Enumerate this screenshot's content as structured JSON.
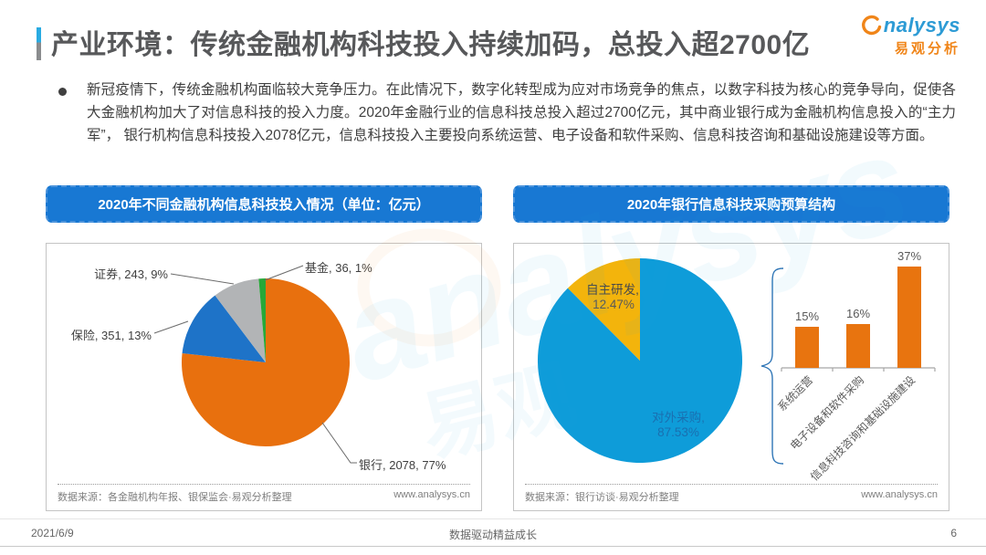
{
  "header": {
    "title": "产业环境：传统金融机构科技投入持续加码，总投入超2700亿",
    "logo": {
      "brand": "analysys",
      "brand_display_rest": "nalysys",
      "brand_cn": "易观分析",
      "brand_color": "#2D9BD5",
      "accent_color": "#F08519"
    }
  },
  "intro": {
    "text": "新冠疫情下，传统金融机构面临较大竞争压力。在此情况下，数字化转型成为应对市场竞争的焦点，以数字科技为核心的竞争导向，促使各大金融机构加大了对信息科技的投入力度。2020年金融行业的信息科技总投入超过2700亿元，其中商业银行成为金融机构信息投入的“主力军”， 银行机构信息科技投入2078亿元，信息科技投入主要投向系统运营、电子设备和软件采购、信息科技咨询和基础设施建设等方面。"
  },
  "left_panel": {
    "header": "2020年不同金融机构信息科技投入情况（单位：亿元）",
    "source": "数据来源：各金融机构年报、银保监会·易观分析整理",
    "site": "www.analysys.cn"
  },
  "right_panel": {
    "header": "2020年银行信息科技采购预算结构",
    "source": "数据来源：银行访谈·易观分析整理",
    "site": "www.analysys.cn"
  },
  "footer": {
    "date": "2021/6/9",
    "slogan": "数据驱动精益成长",
    "page_number": "6"
  },
  "chart_data": [
    {
      "type": "pie",
      "title": "2020年不同金融机构信息科技投入情况",
      "unit": "亿元",
      "labels": [
        "银行",
        "保险",
        "证券",
        "基金"
      ],
      "values": [
        2078,
        351,
        243,
        36
      ],
      "percents": [
        77,
        13,
        9,
        1
      ],
      "colors": [
        "#E8700E",
        "#1E73C8",
        "#B2B4B6",
        "#27A838"
      ],
      "point_labels": [
        "银行, 2078, 77%",
        "保险, 351, 13%",
        "证券, 243, 9%",
        "基金, 36, 1%"
      ],
      "start_angle_deg": 0,
      "direction": "clockwise",
      "legend": "leader-line labels"
    },
    {
      "type": "pie",
      "title": "2020年银行信息科技采购预算结构",
      "labels": [
        "对外采购",
        "自主研发"
      ],
      "values": [
        87.53,
        12.47
      ],
      "colors": [
        "#0E9CD9",
        "#F3B40C"
      ],
      "slice_labels": [
        {
          "line1": "对外采购,",
          "line2": "87.53%"
        },
        {
          "line1": "自主研发,",
          "line2": "12.47%"
        }
      ],
      "start_angle_deg": 0,
      "direction": "clockwise",
      "legend": "inside labels"
    },
    {
      "type": "bar",
      "categories": [
        "系统运营",
        "电子设备和软件采购",
        "信息科技咨询和基础设施建设"
      ],
      "values": [
        15,
        16,
        37
      ],
      "value_labels": [
        "15%",
        "16%",
        "37%"
      ],
      "bar_color": "#E8740F",
      "ylim": [
        0,
        40
      ],
      "grid": false
    }
  ]
}
